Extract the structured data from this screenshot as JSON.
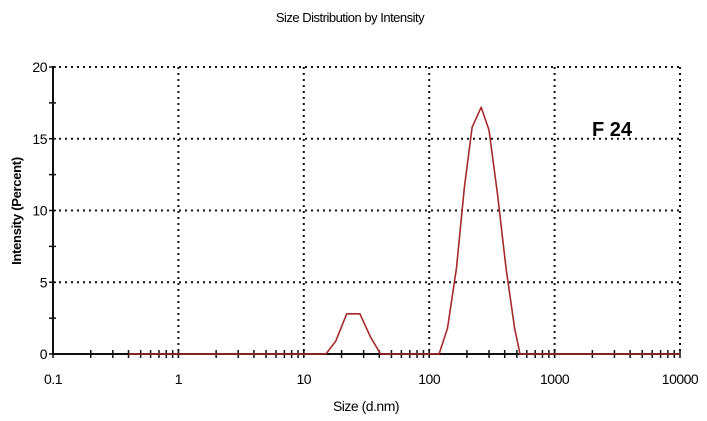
{
  "chart_data": {
    "type": "line",
    "title": "Size Distribution by Intensity",
    "xlabel": "Size (d.nm)",
    "ylabel": "Intensity (Percent)",
    "xscale": "log",
    "xlim": [
      0.1,
      10000
    ],
    "ylim": [
      0,
      20
    ],
    "xticks": [
      "0.1",
      "1",
      "10",
      "100",
      "1000",
      "10000"
    ],
    "yticks": [
      "0",
      "5",
      "10",
      "15",
      "20"
    ],
    "grid": true,
    "annotation": "F 24",
    "line_color": "#a52a2a",
    "series": [
      {
        "name": "F 24",
        "x": [
          0.4,
          15,
          18,
          22,
          28,
          34,
          41,
          50,
          120,
          140,
          165,
          190,
          220,
          260,
          300,
          350,
          410,
          480,
          530,
          10000
        ],
        "y": [
          0,
          0,
          0.9,
          2.8,
          2.8,
          1.2,
          0,
          0,
          0,
          1.8,
          6.0,
          11.5,
          15.8,
          17.2,
          15.6,
          11.2,
          6.0,
          1.8,
          0,
          0
        ]
      }
    ]
  }
}
